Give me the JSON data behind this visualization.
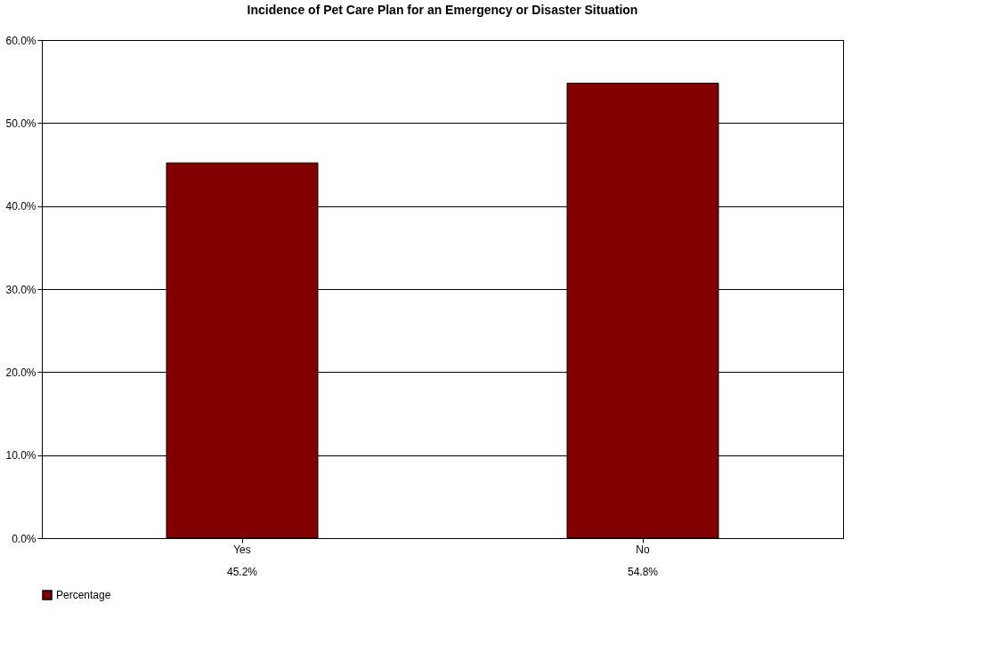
{
  "chart_data": {
    "type": "bar",
    "title": "Incidence of Pet Care Plan for an Emergency or Disaster Situation",
    "categories": [
      "Yes",
      "No"
    ],
    "series": [
      {
        "name": "Percentage",
        "color": "#800000",
        "values": [
          45.2,
          54.8
        ],
        "value_labels": [
          "45.2%",
          "54.8%"
        ]
      }
    ],
    "ylim": [
      0,
      60
    ],
    "yticks": [
      {
        "value": 0,
        "label": "0.0%"
      },
      {
        "value": 10,
        "label": "10.0%"
      },
      {
        "value": 20,
        "label": "20.0%"
      },
      {
        "value": 30,
        "label": "30.0%"
      },
      {
        "value": 40,
        "label": "40.0%"
      },
      {
        "value": 50,
        "label": "50.0%"
      },
      {
        "value": 60,
        "label": "60.0%"
      }
    ],
    "grid": "y",
    "legend": "bottom"
  }
}
